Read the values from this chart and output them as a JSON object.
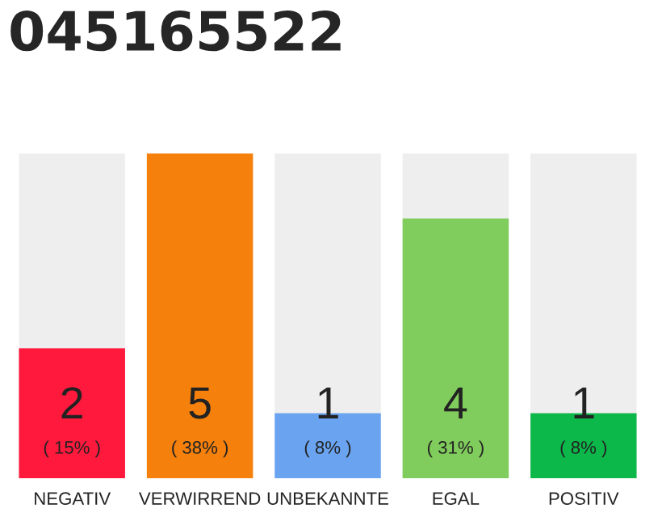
{
  "chart_data": {
    "type": "bar",
    "title": "045165522",
    "categories": [
      "NEGATIV",
      "VERWIRREND",
      "UNBEKANNTE",
      "EGAL",
      "POSITIV"
    ],
    "values": [
      2,
      5,
      1,
      4,
      1
    ],
    "colors": [
      "#ff1a3d",
      "#f5800c",
      "#6aa4f0",
      "#80cc5c",
      "#0db84a"
    ],
    "value_labels": [
      "2\n( 15% )",
      "5\n( 38% )",
      "1\n( 8% )",
      "4\n( 31% )",
      "1\n( 8% )"
    ],
    "grid": false,
    "legend": false
  }
}
